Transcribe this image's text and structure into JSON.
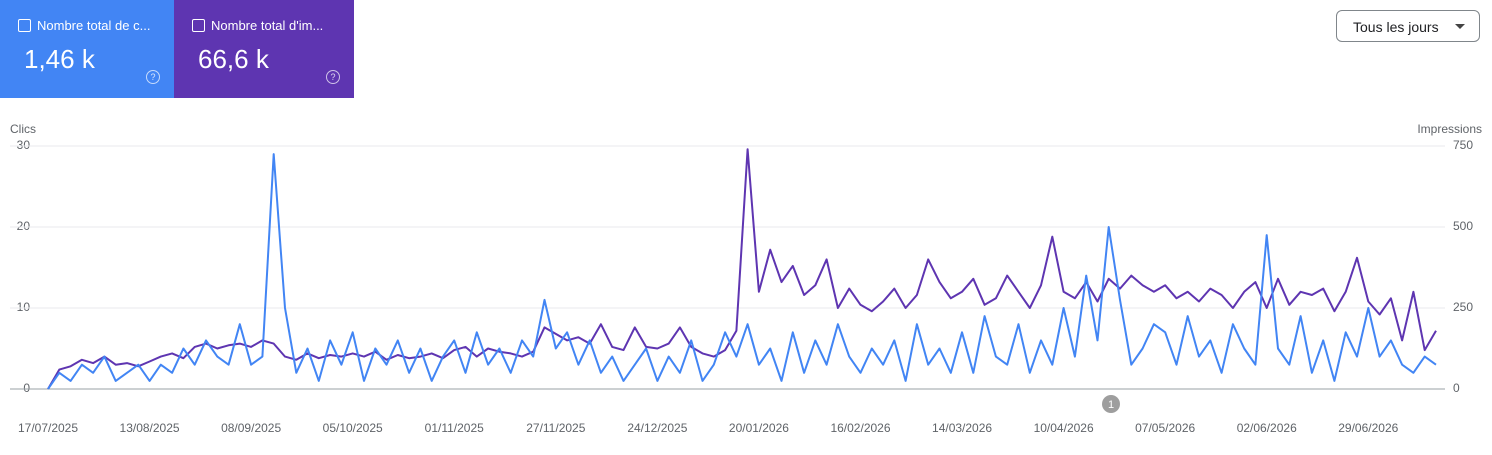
{
  "filter": "Tous les jours",
  "chart_data": {
    "type": "line",
    "ylabel": "Clics",
    "y2label": "Impressions",
    "annotation": "1",
    "ylim": [
      0,
      30
    ],
    "yticks": [
      0,
      10,
      20,
      30
    ],
    "y2lim": [
      0,
      750
    ],
    "y2ticks": [
      0,
      250,
      500,
      750
    ],
    "grid": true,
    "categories": [
      "17/07/2025",
      null,
      null,
      null,
      null,
      null,
      null,
      null,
      null,
      "13/08/2025",
      null,
      null,
      null,
      null,
      null,
      null,
      null,
      null,
      "08/09/2025",
      null,
      null,
      null,
      null,
      null,
      null,
      null,
      null,
      "05/10/2025",
      null,
      null,
      null,
      null,
      null,
      null,
      null,
      null,
      "01/11/2025",
      null,
      null,
      null,
      null,
      null,
      null,
      null,
      null,
      "27/11/2025",
      null,
      null,
      null,
      null,
      null,
      null,
      null,
      null,
      "24/12/2025",
      null,
      null,
      null,
      null,
      null,
      null,
      null,
      null,
      "20/01/2026",
      null,
      null,
      null,
      null,
      null,
      null,
      null,
      null,
      "16/02/2026",
      null,
      null,
      null,
      null,
      null,
      null,
      null,
      null,
      "14/03/2026",
      null,
      null,
      null,
      null,
      null,
      null,
      null,
      null,
      "10/04/2026",
      null,
      null,
      null,
      null,
      null,
      null,
      null,
      null,
      "07/05/2026",
      null,
      null,
      null,
      null,
      null,
      null,
      null,
      null,
      "02/06/2026",
      null,
      null,
      null,
      null,
      null,
      null,
      null,
      null,
      "29/06/2026",
      null,
      null,
      null,
      null,
      null,
      null
    ],
    "series": [
      {
        "name": "Nombre total de c...",
        "total": "1,46 k",
        "color": "#4285f4",
        "card_color": "#4285f4",
        "values": [
          0,
          2,
          1,
          3,
          2,
          4,
          1,
          2,
          3,
          1,
          3,
          2,
          5,
          3,
          6,
          4,
          3,
          8,
          3,
          4,
          29,
          10,
          2,
          5,
          1,
          6,
          3,
          7,
          1,
          5,
          3,
          6,
          2,
          5,
          1,
          4,
          6,
          2,
          7,
          3,
          5,
          2,
          6,
          4,
          11,
          5,
          7,
          3,
          6,
          2,
          4,
          1,
          3,
          5,
          1,
          4,
          2,
          6,
          1,
          3,
          7,
          4,
          8,
          3,
          5,
          1,
          7,
          2,
          6,
          3,
          8,
          4,
          2,
          5,
          3,
          6,
          1,
          8,
          3,
          5,
          2,
          7,
          2,
          9,
          4,
          3,
          8,
          2,
          6,
          3,
          10,
          4,
          14,
          6,
          20,
          11,
          3,
          5,
          8,
          7,
          3,
          9,
          4,
          6,
          2,
          8,
          5,
          3,
          19,
          5,
          3,
          9,
          2,
          6,
          1,
          7,
          4,
          10,
          4,
          6,
          3,
          2,
          4,
          3
        ]
      },
      {
        "name": "Nombre total d'im...",
        "total": "66,6 k",
        "color": "#5e35b1",
        "card_color": "#5e35b1",
        "axis": "y2",
        "values": [
          0,
          60,
          70,
          90,
          80,
          100,
          75,
          80,
          70,
          85,
          100,
          110,
          95,
          130,
          140,
          125,
          135,
          140,
          130,
          150,
          140,
          100,
          90,
          110,
          95,
          105,
          100,
          110,
          100,
          115,
          90,
          105,
          95,
          100,
          110,
          95,
          120,
          130,
          100,
          125,
          115,
          110,
          100,
          115,
          190,
          170,
          150,
          160,
          140,
          200,
          130,
          120,
          190,
          130,
          125,
          140,
          190,
          130,
          110,
          100,
          120,
          180,
          740,
          300,
          430,
          330,
          380,
          290,
          320,
          400,
          250,
          310,
          260,
          240,
          270,
          310,
          250,
          290,
          400,
          330,
          280,
          300,
          340,
          260,
          280,
          350,
          300,
          250,
          320,
          470,
          300,
          280,
          330,
          270,
          340,
          310,
          350,
          320,
          300,
          320,
          280,
          300,
          270,
          310,
          290,
          250,
          300,
          330,
          250,
          340,
          260,
          300,
          290,
          310,
          240,
          300,
          405,
          270,
          230,
          280,
          150,
          300,
          120,
          180
        ]
      }
    ]
  }
}
